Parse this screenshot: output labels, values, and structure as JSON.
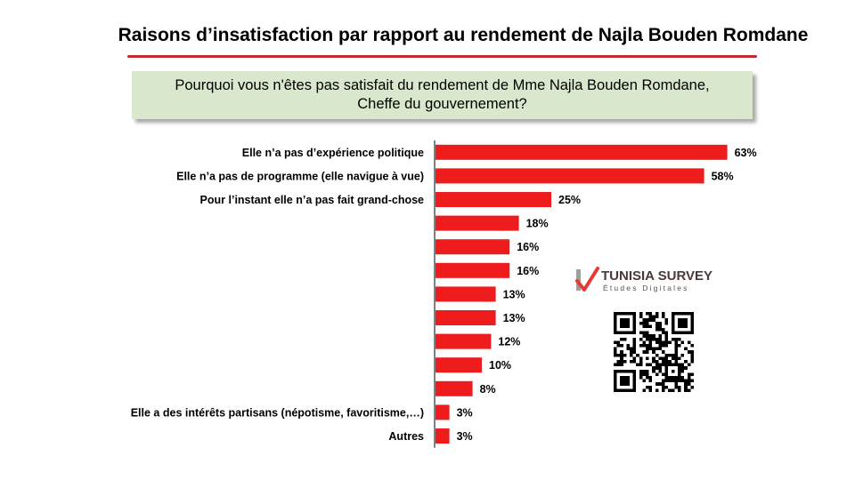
{
  "page": {
    "title": "Raisons d’insatisfaction par rapport au rendement  de Najla Bouden Romdane",
    "question": "Pourquoi vous n'êtes pas satisfait du rendement de Mme Najla Bouden Romdane,\nCheffe du gouvernement?"
  },
  "logo": {
    "name": "TUNISIA SURVEY",
    "tagline": "Études Digitales",
    "icon": "checkmark-icon"
  },
  "qr_code": {
    "icon": "qr-code-icon"
  },
  "colors": {
    "bar": "#ee1c1c",
    "title_underline": "#c62828",
    "question_bg": "#d9e8cc",
    "logo_check": "#e53935"
  },
  "chart_data": {
    "type": "bar",
    "orientation": "horizontal",
    "categories": [
      "Elle n’a pas d’expérience politique",
      "Elle n’a pas de programme (elle navigue à vue)",
      "Pour l’instant elle n’a pas fait grand-chose",
      "",
      "",
      "",
      "",
      "",
      "",
      "",
      "",
      "Elle a des intérêts partisans (népotisme, favoritisme,…)",
      "Autres"
    ],
    "values": [
      63,
      58,
      25,
      18,
      16,
      16,
      13,
      13,
      12,
      10,
      8,
      3,
      3
    ],
    "value_labels": [
      "63%",
      "58%",
      "25%",
      "18%",
      "16%",
      "16%",
      "13%",
      "13%",
      "12%",
      "10%",
      "8%",
      "3%",
      "3%"
    ],
    "unit": "%",
    "grid": false,
    "legend": "none"
  }
}
